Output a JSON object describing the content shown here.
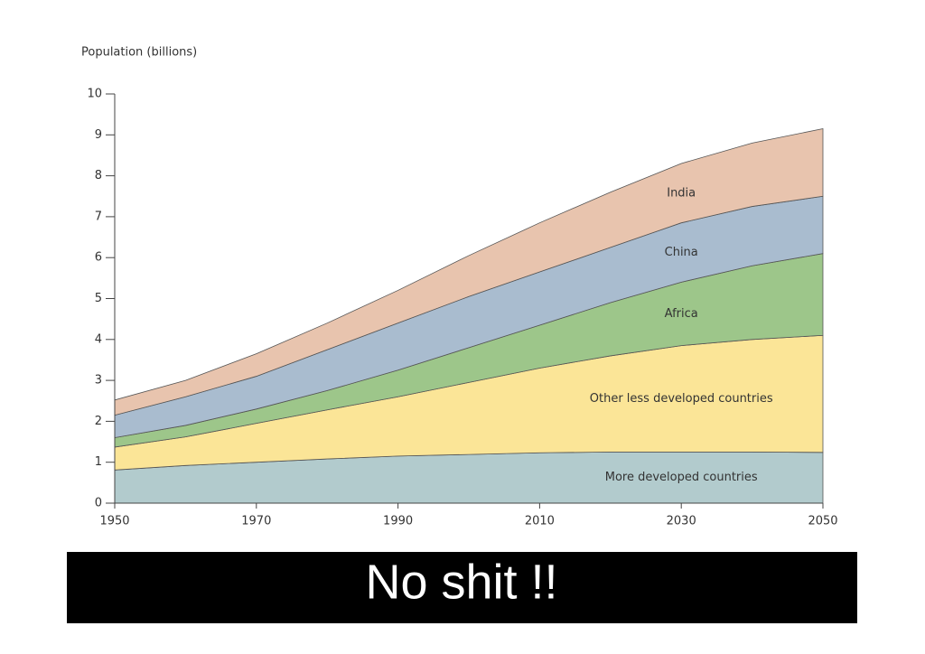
{
  "chart_data": {
    "type": "stacked_area",
    "y_axis_label": "Population (billions)",
    "caption": "No shit !!",
    "x": [
      1950,
      1960,
      1970,
      1980,
      1990,
      2000,
      2010,
      2020,
      2030,
      2040,
      2050
    ],
    "xlim": [
      1950,
      2050
    ],
    "xticks": [
      1950,
      1970,
      1990,
      2010,
      2030,
      2050
    ],
    "ylim": [
      0,
      10
    ],
    "yticks": [
      0,
      1,
      2,
      3,
      4,
      5,
      6,
      7,
      8,
      9,
      10
    ],
    "series": [
      {
        "name": "More developed countries",
        "color": "#b2cbcd",
        "values": [
          0.81,
          0.92,
          1.0,
          1.08,
          1.15,
          1.19,
          1.23,
          1.25,
          1.25,
          1.25,
          1.24
        ]
      },
      {
        "name": "Other less developed countries",
        "color": "#fbe597",
        "values": [
          0.56,
          0.7,
          0.95,
          1.2,
          1.45,
          1.76,
          2.07,
          2.35,
          2.6,
          2.75,
          2.86
        ]
      },
      {
        "name": "Africa",
        "color": "#9dc68a",
        "values": [
          0.23,
          0.28,
          0.35,
          0.47,
          0.65,
          0.85,
          1.05,
          1.3,
          1.55,
          1.8,
          2.0
        ]
      },
      {
        "name": "China",
        "color": "#a9bccf",
        "values": [
          0.55,
          0.7,
          0.8,
          1.0,
          1.15,
          1.25,
          1.3,
          1.35,
          1.45,
          1.45,
          1.4
        ]
      },
      {
        "name": "India",
        "color": "#e8c4ae",
        "values": [
          0.37,
          0.4,
          0.55,
          0.65,
          0.8,
          1.0,
          1.2,
          1.35,
          1.45,
          1.55,
          1.65
        ]
      }
    ]
  }
}
